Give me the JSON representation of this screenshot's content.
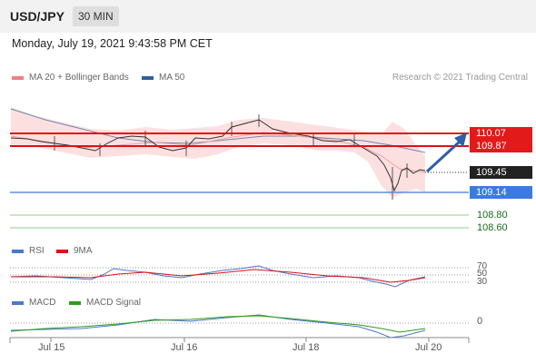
{
  "header": {
    "symbol": "USD/JPY",
    "interval": "30 MIN",
    "datetime": "Monday, July 19, 2021 9:43:58 PM CET"
  },
  "legend_main": [
    {
      "label": "MA 20 + Bollinger Bands",
      "color": "#f08080"
    },
    {
      "label": "MA 50",
      "color": "#2f5f9a"
    }
  ],
  "credit": "Research © 2021 Trading Central",
  "price_levels": {
    "resistance_1": "110.07",
    "resistance_2": "109.87",
    "current": "109.45",
    "support": "109.14",
    "target_1": "108.80",
    "target_2": "108.60"
  },
  "legend_rsi": [
    {
      "label": "RSI",
      "color": "#4a78d0"
    },
    {
      "label": "9MA",
      "color": "#e0101a"
    }
  ],
  "rsi_levels": [
    "70",
    "50",
    "30"
  ],
  "legend_macd": [
    {
      "label": "MACD",
      "color": "#4a78d0"
    },
    {
      "label": "MACD Signal",
      "color": "#2e9a1e"
    }
  ],
  "macd_zero": "0",
  "x_labels": [
    "Jul 15",
    "Jul 16",
    "Jul 18",
    "Jul 20"
  ],
  "chart_data": {
    "type": "line",
    "x_ticks": [
      "Jul 15",
      "Jul 16",
      "Jul 18",
      "Jul 20"
    ],
    "price_series_approx": [
      109.88,
      109.86,
      109.85,
      109.83,
      109.8,
      109.78,
      109.82,
      109.88,
      109.9,
      109.84,
      109.82,
      109.8,
      109.85,
      109.88,
      109.87,
      109.9,
      110.02,
      110.08,
      110.04,
      110.0,
      109.97,
      109.95,
      109.94,
      109.9,
      109.86,
      109.8,
      109.72,
      109.55,
      109.3,
      109.2,
      109.35,
      109.42,
      109.45
    ],
    "horizontal_levels": {
      "resistance": [
        110.07,
        109.87
      ],
      "last_price": 109.45,
      "support": 109.14,
      "targets": [
        108.8,
        108.6
      ]
    },
    "projection": {
      "direction": "up",
      "target": 110.07
    },
    "series": [
      {
        "name": "MA 20 + Bollinger Bands"
      },
      {
        "name": "MA 50"
      }
    ],
    "indicators": {
      "rsi": {
        "levels": [
          70,
          50,
          30
        ],
        "series": [
          {
            "name": "RSI"
          },
          {
            "name": "9MA"
          }
        ]
      },
      "macd": {
        "zero_line": 0,
        "series": [
          {
            "name": "MACD"
          },
          {
            "name": "MACD Signal"
          }
        ]
      }
    }
  }
}
